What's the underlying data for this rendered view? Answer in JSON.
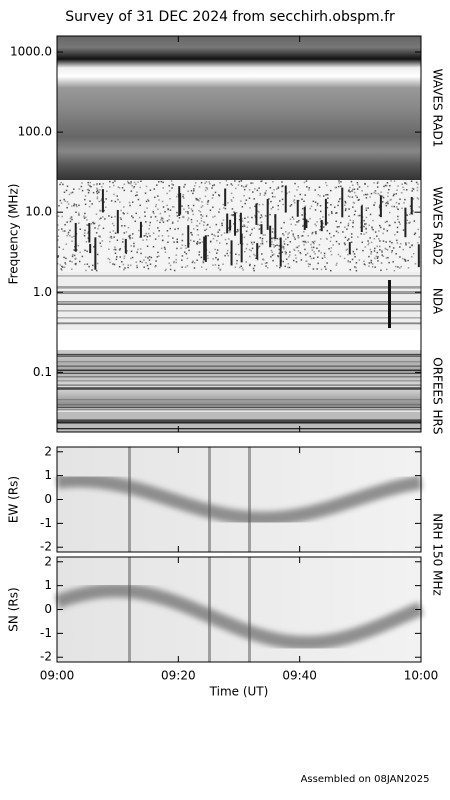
{
  "title": "Survey of 31 DEC 2024 from secchirh.obspm.fr",
  "footer": "Assembled on 08JAN2025",
  "nrh_label": "NRH 150 MHz",
  "chart_data": [
    {
      "type": "spectrogram",
      "ylabel": "Frequency (MHz)",
      "log_y": true,
      "ylim": [
        0.018,
        1585
      ],
      "yticks": [
        0.1,
        {
          "value": 1,
          "label": "1.0"
        },
        {
          "value": 10,
          "label": "10.0"
        },
        {
          "value": 100,
          "label": "100.0"
        },
        {
          "value": 1000,
          "label": "1000.0"
        }
      ],
      "panel_labels": [
        "WAVES RAD1",
        "WAVES RAD2",
        "NDA",
        "ORFEES",
        "HRS"
      ]
    },
    {
      "type": "heatmap",
      "ylabel": "EW (Rs)",
      "ylim": [
        -2.2,
        2.2
      ],
      "yticks": [
        -2,
        -1,
        0,
        1,
        2
      ]
    },
    {
      "type": "heatmap",
      "ylabel": "SN (Rs)",
      "ylim": [
        -2.2,
        2.2
      ],
      "yticks": [
        -2,
        -1,
        0,
        1,
        2
      ],
      "xlabel": "Time (UT)",
      "xlim": [
        "09:00",
        "10:00"
      ],
      "xticks": [
        "09:00",
        "09:20",
        "09:40",
        "10:00"
      ]
    }
  ]
}
